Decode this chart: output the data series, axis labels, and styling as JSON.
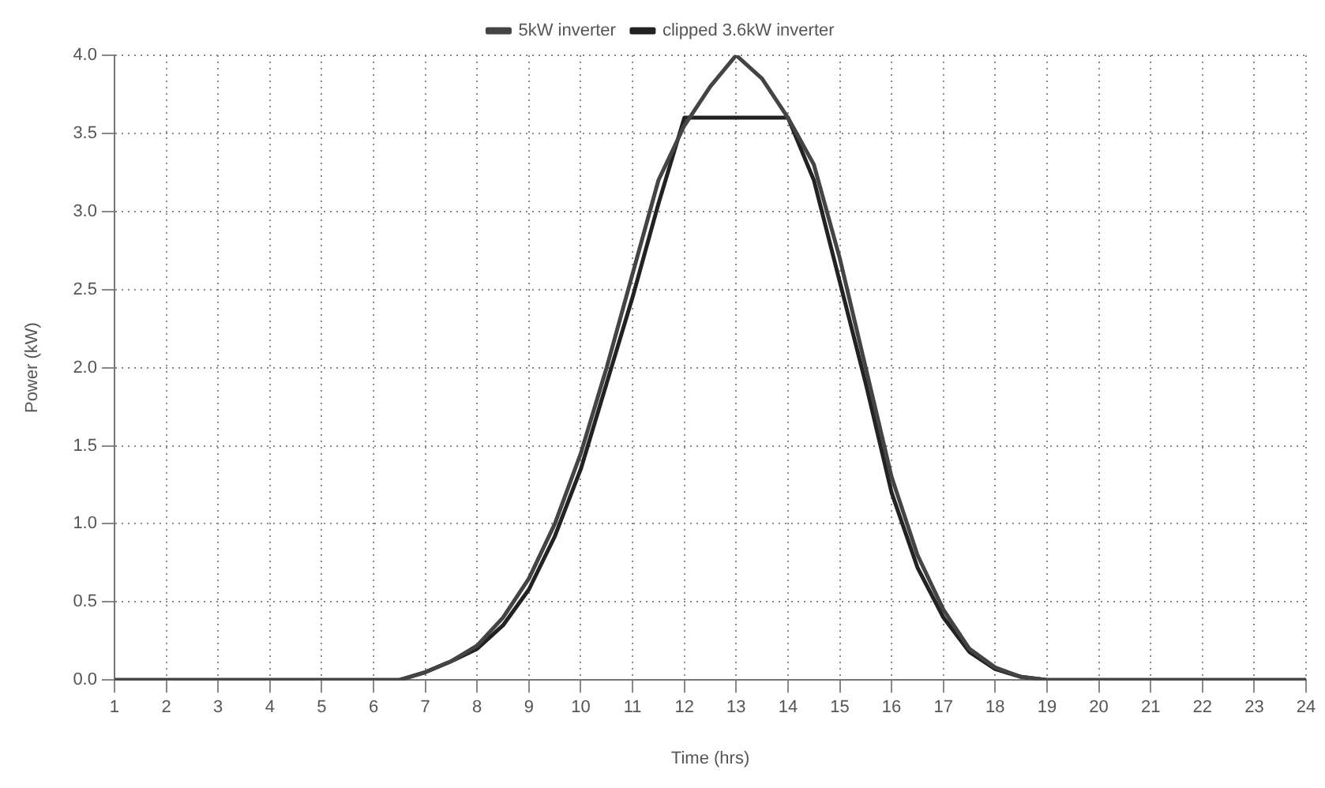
{
  "chart_data": {
    "type": "line",
    "xlabel": "Time (hrs)",
    "ylabel": "Power (kW)",
    "xlim": [
      1,
      24
    ],
    "xticks": [
      1,
      2,
      3,
      4,
      5,
      6,
      7,
      8,
      9,
      10,
      11,
      12,
      13,
      14,
      15,
      16,
      17,
      18,
      19,
      20,
      21,
      22,
      23,
      24
    ],
    "ylim": [
      0,
      4
    ],
    "yticks": [
      {
        "value": 0,
        "label": "0.0"
      },
      0.5,
      {
        "value": 1,
        "label": "1.0"
      },
      1.5,
      {
        "value": 2,
        "label": "2.0"
      },
      2.5,
      {
        "value": 3,
        "label": "3.0"
      },
      3.5,
      {
        "value": 4,
        "label": "4.0"
      }
    ],
    "grid": true,
    "legend": "top",
    "marker": "none",
    "line_style": "solid",
    "series": [
      {
        "name": "5kW inverter",
        "color": "#444444",
        "x": [
          1,
          6,
          6.5,
          7,
          7.5,
          8,
          8.5,
          9,
          9.5,
          10,
          10.5,
          11,
          11.5,
          12,
          12.5,
          13,
          13.5,
          14,
          14.5,
          15,
          15.5,
          16,
          16.5,
          17,
          17.5,
          18,
          18.5,
          19,
          24
        ],
        "values": [
          0,
          0,
          0,
          0.05,
          0.12,
          0.22,
          0.4,
          0.65,
          1.0,
          1.45,
          2.0,
          2.6,
          3.2,
          3.55,
          3.8,
          4.0,
          3.85,
          3.6,
          3.3,
          2.7,
          2.0,
          1.3,
          0.8,
          0.45,
          0.2,
          0.08,
          0.02,
          0,
          0
        ]
      },
      {
        "name": "clipped 3.6kW inverter",
        "color": "#222222",
        "x": [
          1,
          6,
          6.5,
          7,
          7.5,
          8,
          8.5,
          9,
          9.5,
          10,
          10.5,
          11,
          11.5,
          12,
          12.5,
          13,
          13.5,
          14,
          14.5,
          15,
          15.5,
          16,
          16.5,
          17,
          17.5,
          18,
          18.5,
          19,
          24
        ],
        "values": [
          0,
          0,
          0,
          0.05,
          0.12,
          0.2,
          0.35,
          0.58,
          0.92,
          1.35,
          1.9,
          2.45,
          3.05,
          3.6,
          3.6,
          3.6,
          3.6,
          3.6,
          3.2,
          2.55,
          1.9,
          1.2,
          0.72,
          0.4,
          0.18,
          0.07,
          0.02,
          0,
          0
        ]
      }
    ]
  }
}
